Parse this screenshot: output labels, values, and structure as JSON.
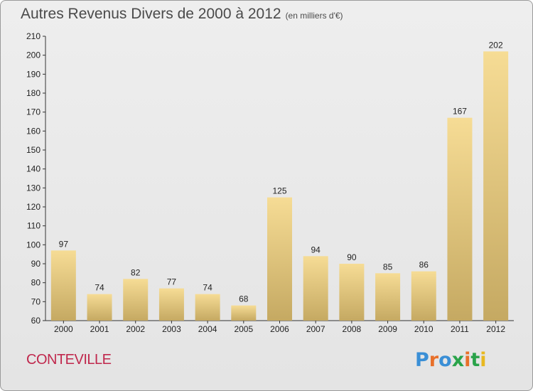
{
  "title": "Autres Revenus Divers de 2000 à 2012",
  "subtitle": "(en milliers d'€)",
  "commune": "CONTEVILLE",
  "brand": "Proxiti",
  "colors": {
    "bar_light": "#f6dc95",
    "bar_dark": "#c5a962",
    "axis": "#333333",
    "commune": "#c0284d",
    "brand_letters": [
      "#3a8fd6",
      "#e8702a",
      "#3a8fd6",
      "#2aa34a",
      "#e8702a",
      "#2aa34a",
      "#e8b820"
    ]
  },
  "chart_data": {
    "type": "bar",
    "categories": [
      "2000",
      "2001",
      "2002",
      "2003",
      "2004",
      "2005",
      "2006",
      "2007",
      "2008",
      "2009",
      "2010",
      "2011",
      "2012"
    ],
    "values": [
      97,
      74,
      82,
      77,
      74,
      68,
      125,
      94,
      90,
      85,
      86,
      167,
      202
    ],
    "ylim": [
      60,
      210
    ],
    "yticks": [
      60,
      70,
      80,
      90,
      100,
      110,
      120,
      130,
      140,
      150,
      160,
      170,
      180,
      190,
      200,
      210
    ],
    "xlabel": "",
    "ylabel": "",
    "grid": false
  }
}
